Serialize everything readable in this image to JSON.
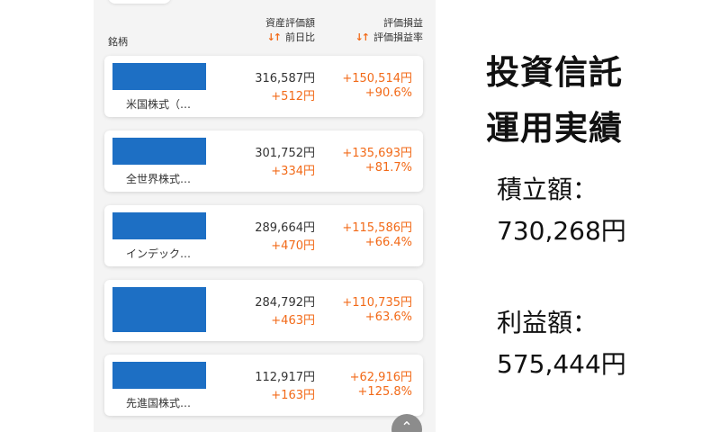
{
  "table": {
    "header": {
      "name": "銘柄",
      "col1_top": "資産評価額",
      "col1_bottom": "前日比",
      "col2_top": "評価損益",
      "col2_bottom": "評価損益率",
      "sort_icon": "sort-arrows-icon"
    },
    "funds": [
      {
        "name": "米国株式（…",
        "amount": "316,587円",
        "day_change": "+512円",
        "gain": "+150,514円",
        "rate": "+90.6%"
      },
      {
        "name": "全世界株式…",
        "amount": "301,752円",
        "day_change": "+334円",
        "gain": "+135,693円",
        "rate": "+81.7%"
      },
      {
        "name": "インデック…",
        "amount": "289,664円",
        "day_change": "+470円",
        "gain": "+115,586円",
        "rate": "+66.4%"
      },
      {
        "name": "",
        "amount": "284,792円",
        "day_change": "+463円",
        "gain": "+110,735円",
        "rate": "+63.6%"
      },
      {
        "name": "先進国株式…",
        "amount": "112,917円",
        "day_change": "+163円",
        "gain": "+62,916円",
        "rate": "+125.8%"
      }
    ],
    "scroll_icon": "chevron-up-icon",
    "scroll_glyph": "⌃"
  },
  "summary": {
    "title_line1": "投資信託",
    "title_line2": "運用実績",
    "invest_label": "積立額：",
    "invest_value": "730,268円",
    "profit_label": "利益額：",
    "profit_value": "575,444円"
  },
  "colors": {
    "accent": "#f26a18",
    "fund_mask": "#1d6fc4",
    "panel_bg": "#f4f4f4"
  }
}
